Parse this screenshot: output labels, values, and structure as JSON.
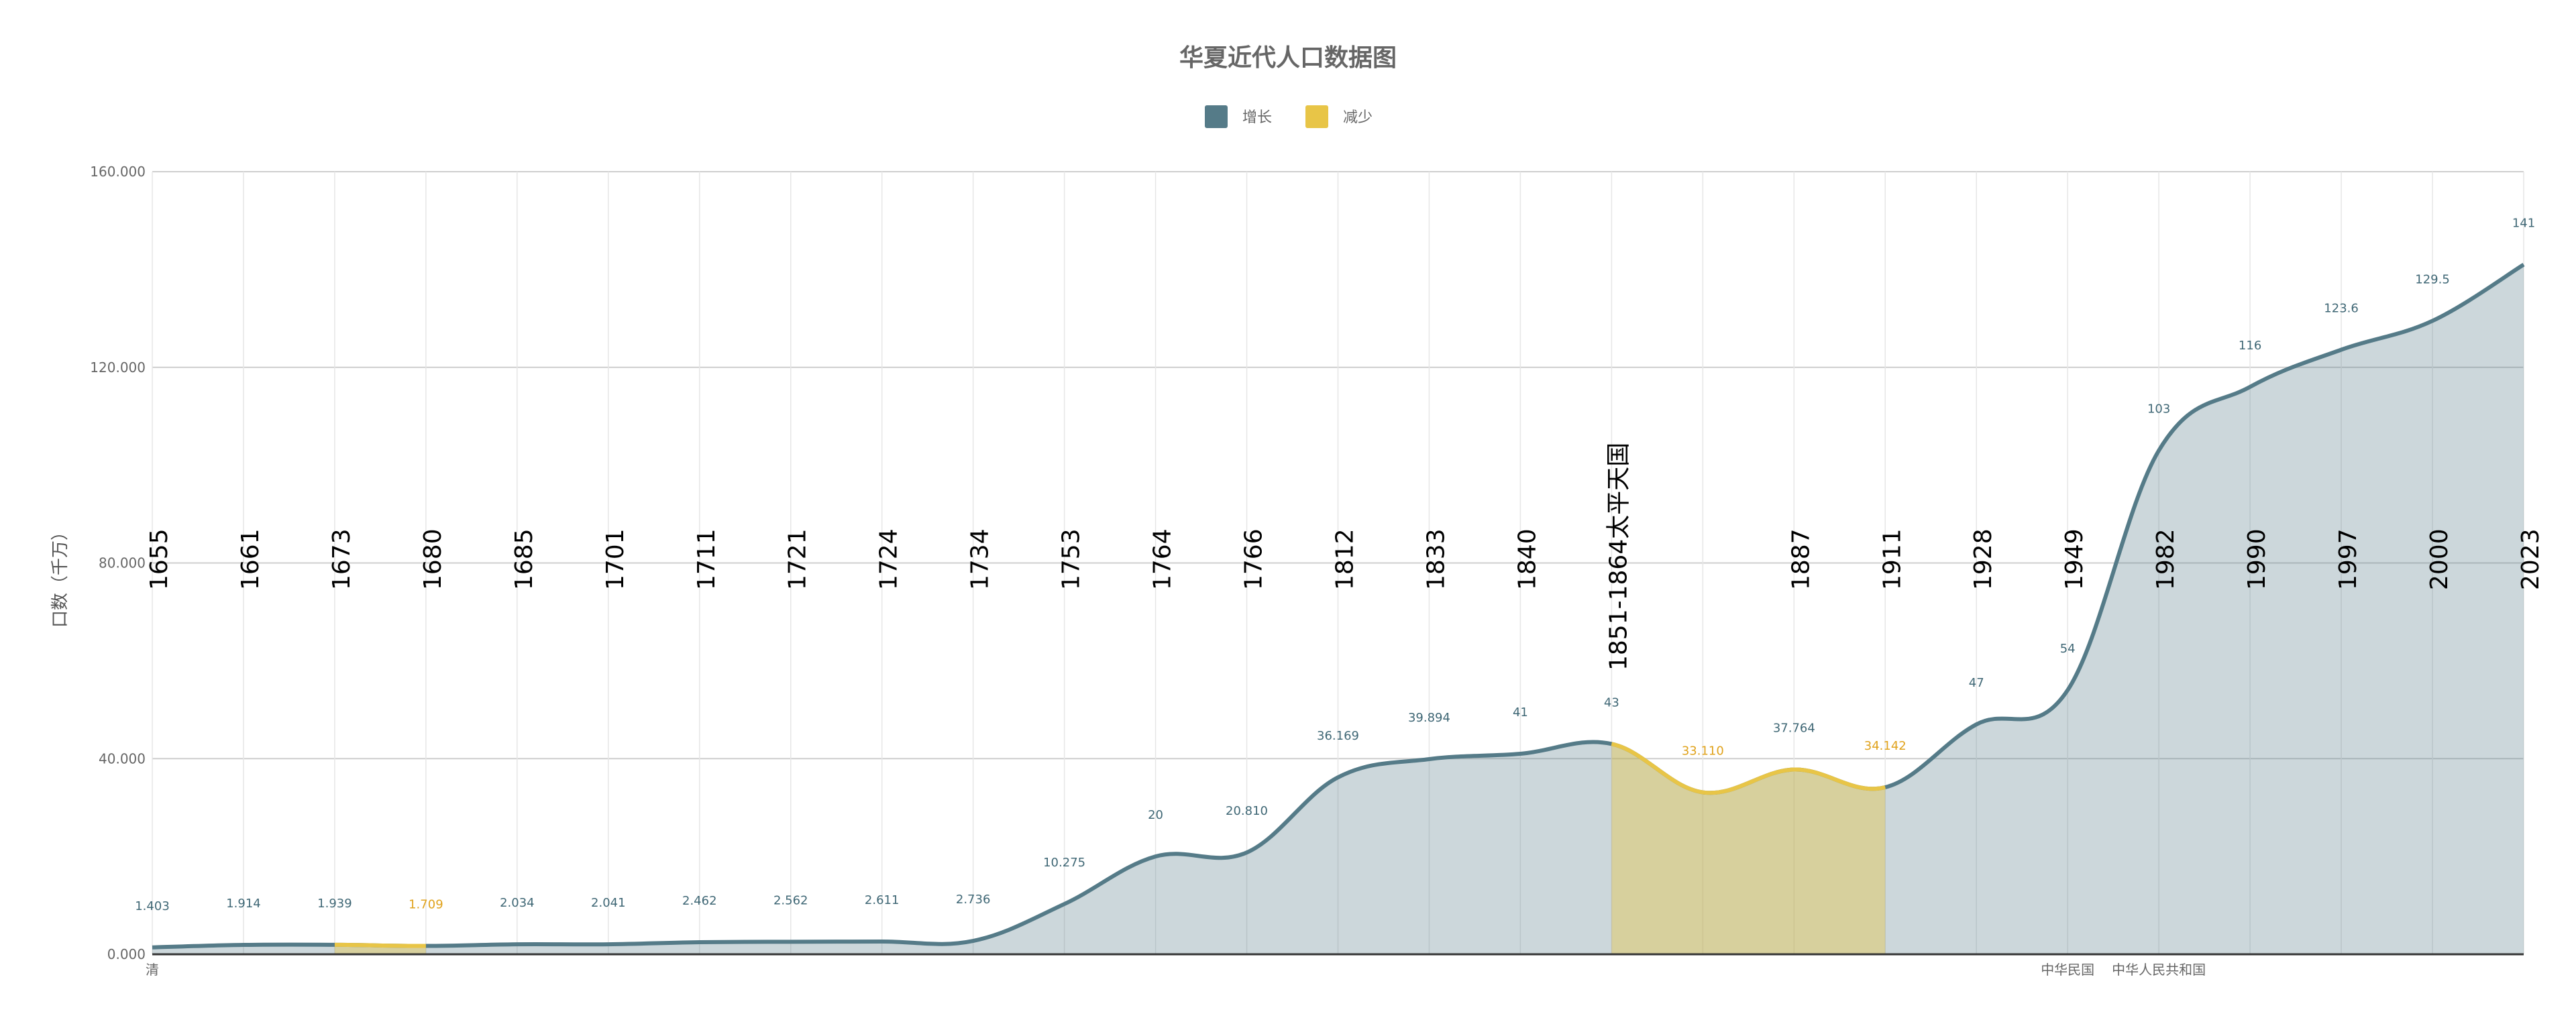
{
  "chart_data": {
    "type": "area",
    "title": "华夏近代人口数据图",
    "ylabel": "口数（千万）",
    "xlabel": "",
    "ylim": [
      0,
      160
    ],
    "yticks": [
      "0.000",
      "40.000",
      "80.000",
      "120.000",
      "160.000"
    ],
    "legend": {
      "position": "top-center",
      "items": [
        {
          "name": "增长",
          "color": "#557b88"
        },
        {
          "name": "减少",
          "color": "#e8c547"
        }
      ]
    },
    "colors": {
      "growth": "#557b88",
      "decline": "#e8c547",
      "grid": "#d8d8d8"
    },
    "categories": [
      "1655",
      "1661",
      "1673",
      "1680",
      "1685",
      "1701",
      "1711",
      "1721",
      "1724",
      "1734",
      "1753",
      "1764",
      "1766",
      "1812",
      "1833",
      "1840",
      "1851-1864太平天国",
      "",
      "1887",
      "1911",
      "1928",
      "1949",
      "1982",
      "1990",
      "1997",
      "2000",
      "2023"
    ],
    "values": [
      1.403,
      1.914,
      1.939,
      1.709,
      2.034,
      2.041,
      2.462,
      2.562,
      2.611,
      2.736,
      10.275,
      20,
      20.81,
      36.169,
      39.894,
      41,
      43,
      33.11,
      37.764,
      34.142,
      47,
      54,
      103,
      116,
      123.6,
      129.5,
      141
    ],
    "point_labels": [
      "1.403",
      "1.914",
      "1.939",
      "1.709",
      "2.034",
      "2.041",
      "2.462",
      "2.562",
      "2.611",
      "2.736",
      "10.275",
      "20",
      "20.810",
      "36.169",
      "39.894",
      "41",
      "43",
      "33.110",
      "37.764",
      "34.142",
      "47",
      "54",
      "103",
      "116",
      "123.6",
      "129.5",
      "141"
    ],
    "label_series": [
      "增长",
      "增长",
      "增长",
      "减少",
      "增长",
      "增长",
      "增长",
      "增长",
      "增长",
      "增长",
      "增长",
      "增长",
      "增长",
      "增长",
      "增长",
      "增长",
      "增长",
      "减少",
      "增长",
      "减少",
      "增长",
      "增长",
      "增长",
      "增长",
      "增长",
      "增长",
      "增长"
    ],
    "decline_ranges": [
      [
        2,
        3
      ],
      [
        16,
        19
      ]
    ],
    "era_labels": [
      {
        "text": "清",
        "index": 0
      },
      {
        "text": "中华民国",
        "index": 21
      },
      {
        "text": "中华人民共和国",
        "index": 22
      }
    ],
    "grid": {
      "horizontal": true,
      "vertical": true
    }
  }
}
